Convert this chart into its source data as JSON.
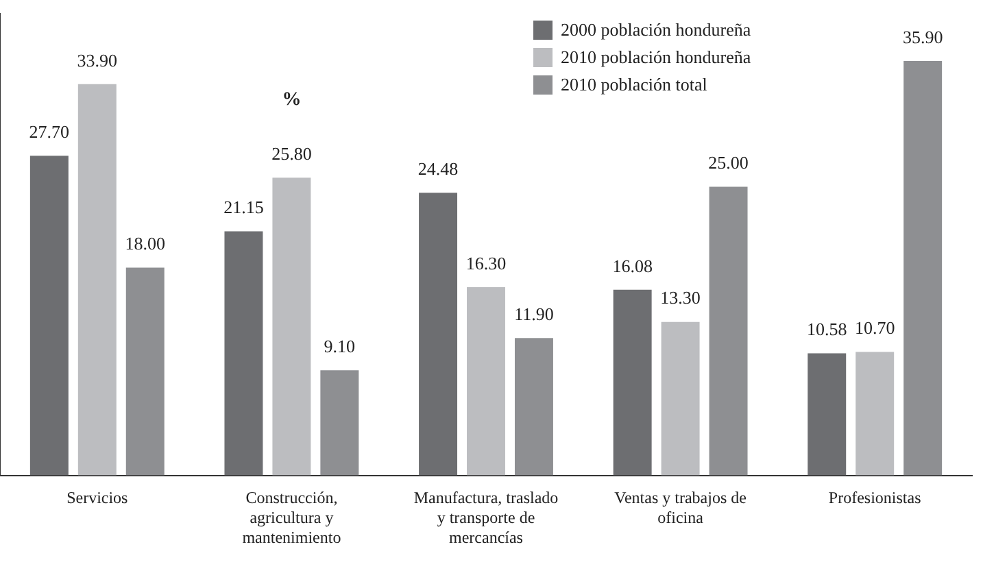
{
  "chart_data": {
    "type": "bar",
    "categories": [
      "Servicios",
      "Construcción, agricultura y mantenimiento",
      "Manufactura, traslado y transporte de mercancías",
      "Ventas y trabajos de oficina",
      "Profesionistas"
    ],
    "series": [
      {
        "name": "2000 población hondureña",
        "color": "#6d6e71",
        "values": [
          27.7,
          21.15,
          24.48,
          16.08,
          10.58
        ],
        "value_labels": [
          "27.70",
          "21.15",
          "24.48",
          "16.08",
          "10.58"
        ]
      },
      {
        "name": "2010 población hondureña",
        "color": "#bcbdc0",
        "values": [
          33.9,
          25.8,
          16.3,
          13.3,
          10.7
        ],
        "value_labels": [
          "33.90",
          "25.80",
          "16.30",
          "13.30",
          "10.70"
        ]
      },
      {
        "name": "2010 población total",
        "color": "#8e8f92",
        "values": [
          18.0,
          9.1,
          11.9,
          25.0,
          35.9
        ],
        "value_labels": [
          "18.00",
          "9.10",
          "11.90",
          "25.00",
          "35.90"
        ]
      }
    ],
    "annotations": [
      "%"
    ],
    "legend": "top right",
    "grid": false
  }
}
